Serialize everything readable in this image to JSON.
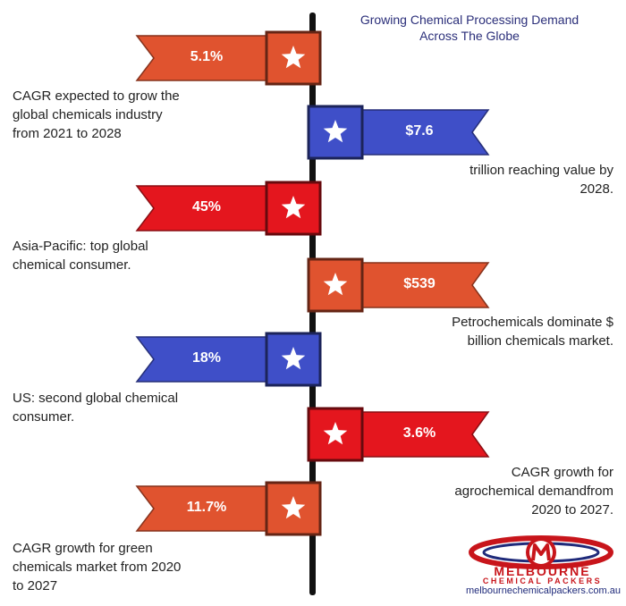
{
  "title": [
    "Growing Chemical Processing Demand",
    "Across The Globe"
  ],
  "items": [
    {
      "side": "left",
      "value": "5.1%",
      "color": "#e0532f",
      "icon": "star-icon",
      "desc": [
        "CAGR expected to grow the",
        "global chemicals industry",
        "from 2021 to 2028"
      ]
    },
    {
      "side": "right",
      "value": "$7.6",
      "color": "#3f4fc8",
      "icon": "star-icon",
      "desc": [
        "trillion reaching value by",
        "2028."
      ]
    },
    {
      "side": "left",
      "value": "45%",
      "color": "#e4161e",
      "icon": "star-icon",
      "desc": [
        "Asia-Pacific: top global",
        "chemical consumer."
      ]
    },
    {
      "side": "right",
      "value": "$539",
      "color": "#e0532f",
      "icon": "star-icon",
      "desc": [
        "Petrochemicals dominate $",
        "billion chemicals market."
      ]
    },
    {
      "side": "left",
      "value": "18%",
      "color": "#3f4fc8",
      "icon": "star-icon",
      "desc": [
        "US: second global chemical",
        "consumer."
      ]
    },
    {
      "side": "right",
      "value": "3.6%",
      "color": "#e4161e",
      "icon": "star-icon",
      "desc": [
        "CAGR growth for",
        "agrochemical demandfrom",
        "2020 to 2027."
      ]
    },
    {
      "side": "left",
      "value": "11.7%",
      "color": "#e0532f",
      "icon": "star-icon",
      "desc": [
        "CAGR growth for green",
        "chemicals market from 2020",
        "to 2027"
      ]
    }
  ],
  "logo": {
    "line1": "MELBOURNE",
    "line2": "CHEMICAL PACKERS",
    "url": "melbournechemicalpackers.com.au",
    "colors": {
      "red": "#c8151b",
      "blue": "#1f2a7a"
    }
  }
}
